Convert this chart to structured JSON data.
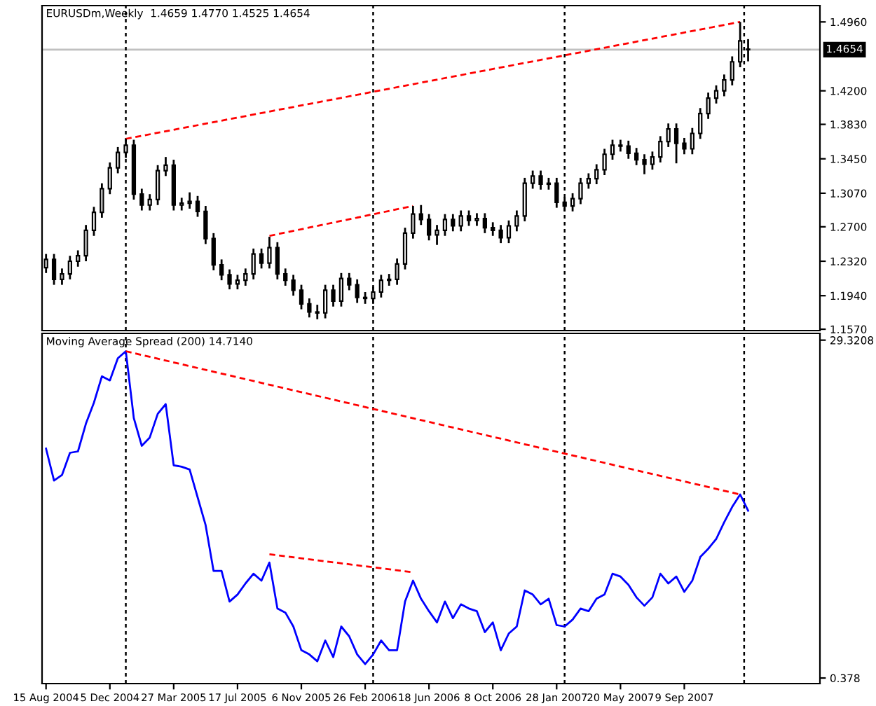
{
  "chart_data": [
    {
      "type": "candlestick",
      "title": "EURUSDm,Weekly  1.4659 1.4770 1.4525 1.4654",
      "color": "#000000",
      "tick_labels": "y",
      "grid": false,
      "legend": false,
      "x": [
        "2004-08-15",
        "2004-08-29",
        "2004-09-12",
        "2004-09-26",
        "2004-10-10",
        "2004-10-24",
        "2004-11-07",
        "2004-11-21",
        "2004-12-05",
        "2004-12-19",
        "2005-01-02",
        "2005-01-16",
        "2005-01-30",
        "2005-02-13",
        "2005-02-27",
        "2005-03-13",
        "2005-03-27",
        "2005-04-10",
        "2005-04-24",
        "2005-05-08",
        "2005-05-22",
        "2005-06-05",
        "2005-06-19",
        "2005-07-03",
        "2005-07-17",
        "2005-07-31",
        "2005-08-14",
        "2005-08-28",
        "2005-09-11",
        "2005-09-25",
        "2005-10-09",
        "2005-10-23",
        "2005-11-06",
        "2005-11-20",
        "2005-12-04",
        "2005-12-18",
        "2006-01-01",
        "2006-01-15",
        "2006-01-29",
        "2006-02-12",
        "2006-02-26",
        "2006-03-12",
        "2006-03-26",
        "2006-04-09",
        "2006-04-23",
        "2006-05-07",
        "2006-05-21",
        "2006-06-04",
        "2006-06-18",
        "2006-07-02",
        "2006-07-16",
        "2006-07-30",
        "2006-08-13",
        "2006-08-27",
        "2006-09-10",
        "2006-09-24",
        "2006-10-08",
        "2006-10-22",
        "2006-11-05",
        "2006-11-19",
        "2006-12-03",
        "2006-12-17",
        "2006-12-31",
        "2007-01-14",
        "2007-01-28",
        "2007-02-11",
        "2007-02-25",
        "2007-03-11",
        "2007-03-25",
        "2007-04-08",
        "2007-04-22",
        "2007-05-06",
        "2007-05-20",
        "2007-06-03",
        "2007-06-17",
        "2007-07-01",
        "2007-07-15",
        "2007-07-29",
        "2007-08-12",
        "2007-08-26",
        "2007-09-09",
        "2007-09-23",
        "2007-10-07",
        "2007-10-21",
        "2007-11-04",
        "2007-11-18",
        "2007-12-02",
        "2007-12-16",
        "2007-12-30"
      ],
      "ohlc": [
        [
          1.225,
          1.24,
          1.219,
          1.234
        ],
        [
          1.234,
          1.24,
          1.206,
          1.212
        ],
        [
          1.212,
          1.224,
          1.206,
          1.218
        ],
        [
          1.218,
          1.238,
          1.212,
          1.232
        ],
        [
          1.232,
          1.244,
          1.226,
          1.238
        ],
        [
          1.238,
          1.272,
          1.232,
          1.266
        ],
        [
          1.266,
          1.292,
          1.26,
          1.286
        ],
        [
          1.286,
          1.318,
          1.28,
          1.312
        ],
        [
          1.312,
          1.341,
          1.306,
          1.335
        ],
        [
          1.335,
          1.358,
          1.329,
          1.352
        ],
        [
          1.352,
          1.367,
          1.346,
          1.36
        ],
        [
          1.36,
          1.366,
          1.3,
          1.306
        ],
        [
          1.306,
          1.312,
          1.288,
          1.294
        ],
        [
          1.294,
          1.306,
          1.288,
          1.3
        ],
        [
          1.3,
          1.338,
          1.294,
          1.332
        ],
        [
          1.332,
          1.347,
          1.326,
          1.338
        ],
        [
          1.338,
          1.344,
          1.288,
          1.294
        ],
        [
          1.294,
          1.302,
          1.288,
          1.296
        ],
        [
          1.296,
          1.308,
          1.29,
          1.298
        ],
        [
          1.298,
          1.304,
          1.281,
          1.287
        ],
        [
          1.287,
          1.293,
          1.251,
          1.257
        ],
        [
          1.257,
          1.263,
          1.222,
          1.228
        ],
        [
          1.228,
          1.234,
          1.211,
          1.217
        ],
        [
          1.217,
          1.223,
          1.201,
          1.207
        ],
        [
          1.207,
          1.217,
          1.201,
          1.211
        ],
        [
          1.211,
          1.224,
          1.205,
          1.218
        ],
        [
          1.218,
          1.246,
          1.212,
          1.24
        ],
        [
          1.24,
          1.246,
          1.224,
          1.23
        ],
        [
          1.23,
          1.259,
          1.224,
          1.247
        ],
        [
          1.247,
          1.253,
          1.212,
          1.218
        ],
        [
          1.218,
          1.224,
          1.205,
          1.211
        ],
        [
          1.211,
          1.217,
          1.194,
          1.2
        ],
        [
          1.2,
          1.206,
          1.179,
          1.185
        ],
        [
          1.185,
          1.191,
          1.17,
          1.176
        ],
        [
          1.176,
          1.184,
          1.168,
          1.175
        ],
        [
          1.175,
          1.206,
          1.169,
          1.2
        ],
        [
          1.2,
          1.206,
          1.182,
          1.188
        ],
        [
          1.188,
          1.219,
          1.182,
          1.213
        ],
        [
          1.213,
          1.219,
          1.2,
          1.206
        ],
        [
          1.206,
          1.212,
          1.186,
          1.192
        ],
        [
          1.192,
          1.198,
          1.185,
          1.191
        ],
        [
          1.191,
          1.204,
          1.185,
          1.198
        ],
        [
          1.198,
          1.217,
          1.192,
          1.211
        ],
        [
          1.211,
          1.218,
          1.205,
          1.212
        ],
        [
          1.212,
          1.235,
          1.206,
          1.229
        ],
        [
          1.229,
          1.269,
          1.223,
          1.263
        ],
        [
          1.263,
          1.293,
          1.257,
          1.284
        ],
        [
          1.284,
          1.294,
          1.272,
          1.278
        ],
        [
          1.278,
          1.284,
          1.255,
          1.261
        ],
        [
          1.261,
          1.272,
          1.25,
          1.266
        ],
        [
          1.266,
          1.284,
          1.26,
          1.278
        ],
        [
          1.278,
          1.284,
          1.265,
          1.271
        ],
        [
          1.271,
          1.288,
          1.265,
          1.282
        ],
        [
          1.282,
          1.288,
          1.271,
          1.277
        ],
        [
          1.277,
          1.285,
          1.271,
          1.279
        ],
        [
          1.279,
          1.285,
          1.263,
          1.269
        ],
        [
          1.269,
          1.275,
          1.26,
          1.266
        ],
        [
          1.266,
          1.272,
          1.252,
          1.258
        ],
        [
          1.258,
          1.277,
          1.252,
          1.271
        ],
        [
          1.271,
          1.288,
          1.265,
          1.282
        ],
        [
          1.282,
          1.324,
          1.276,
          1.318
        ],
        [
          1.318,
          1.332,
          1.312,
          1.326
        ],
        [
          1.326,
          1.332,
          1.311,
          1.317
        ],
        [
          1.317,
          1.324,
          1.311,
          1.318
        ],
        [
          1.318,
          1.324,
          1.291,
          1.297
        ],
        [
          1.297,
          1.303,
          1.287,
          1.293
        ],
        [
          1.293,
          1.307,
          1.287,
          1.301
        ],
        [
          1.301,
          1.324,
          1.295,
          1.318
        ],
        [
          1.318,
          1.329,
          1.312,
          1.323
        ],
        [
          1.323,
          1.339,
          1.317,
          1.333
        ],
        [
          1.333,
          1.356,
          1.327,
          1.35
        ],
        [
          1.35,
          1.366,
          1.344,
          1.36
        ],
        [
          1.36,
          1.366,
          1.353,
          1.359
        ],
        [
          1.359,
          1.365,
          1.345,
          1.351
        ],
        [
          1.351,
          1.357,
          1.338,
          1.344
        ],
        [
          1.344,
          1.35,
          1.328,
          1.339
        ],
        [
          1.339,
          1.353,
          1.333,
          1.347
        ],
        [
          1.347,
          1.37,
          1.341,
          1.364
        ],
        [
          1.364,
          1.384,
          1.358,
          1.378
        ],
        [
          1.378,
          1.384,
          1.34,
          1.362
        ],
        [
          1.362,
          1.368,
          1.35,
          1.356
        ],
        [
          1.356,
          1.379,
          1.35,
          1.373
        ],
        [
          1.373,
          1.401,
          1.367,
          1.395
        ],
        [
          1.395,
          1.418,
          1.389,
          1.412
        ],
        [
          1.412,
          1.426,
          1.406,
          1.42
        ],
        [
          1.42,
          1.438,
          1.414,
          1.432
        ],
        [
          1.432,
          1.458,
          1.426,
          1.452
        ],
        [
          1.452,
          1.496,
          1.446,
          1.475
        ],
        [
          1.4659,
          1.477,
          1.4525,
          1.4654
        ]
      ],
      "series": [
        {
          "type": "line",
          "color": "#ff0000",
          "line_style": "dashed",
          "x": [
            "2005-01-02",
            "2007-12-16"
          ],
          "values": [
            1.367,
            1.496
          ]
        },
        {
          "type": "line",
          "color": "#ff0000",
          "line_style": "dashed",
          "x": [
            "2005-09-11",
            "2006-05-21"
          ],
          "values": [
            1.26,
            1.293
          ]
        }
      ],
      "ref_lines": [
        {
          "axis": "y",
          "value": 1.4654,
          "label": "1.4654",
          "color": "#c0c0c0",
          "line_style": "solid"
        },
        {
          "axis": "x",
          "value": "2005-01-02",
          "color": "#000000",
          "line_style": "dotted"
        },
        {
          "axis": "x",
          "value": "2006-03-12",
          "color": "#000000",
          "line_style": "dotted"
        },
        {
          "axis": "x",
          "value": "2007-02-11",
          "color": "#000000",
          "line_style": "dotted"
        },
        {
          "axis": "x",
          "value": "2007-12-23",
          "color": "#000000",
          "line_style": "dotted"
        }
      ],
      "xlim": [
        "2004-08-08",
        "2008-05-04"
      ],
      "ylim": [
        1.1555,
        1.514
      ],
      "yticks": [
        {
          "value": 1.496,
          "label": "1.4960"
        },
        {
          "value": 1.42,
          "label": "1.4200"
        },
        {
          "value": 1.383,
          "label": "1.3830"
        },
        {
          "value": 1.345,
          "label": "1.3450"
        },
        {
          "value": 1.307,
          "label": "1.3070"
        },
        {
          "value": 1.27,
          "label": "1.2700"
        },
        {
          "value": 1.232,
          "label": "1.2320"
        },
        {
          "value": 1.194,
          "label": "1.1940"
        },
        {
          "value": 1.157,
          "label": "1.1570"
        }
      ]
    },
    {
      "type": "line",
      "title": "Moving Average Spread (200) 14.7140",
      "grid": false,
      "legend": false,
      "series": [
        {
          "color": "#0000ff",
          "line_style": "solid",
          "x": [
            "2004-08-15",
            "2004-08-29",
            "2004-09-12",
            "2004-09-26",
            "2004-10-10",
            "2004-10-24",
            "2004-11-07",
            "2004-11-21",
            "2004-12-05",
            "2004-12-19",
            "2005-01-02",
            "2005-01-16",
            "2005-01-30",
            "2005-02-13",
            "2005-02-27",
            "2005-03-13",
            "2005-03-27",
            "2005-04-10",
            "2005-04-24",
            "2005-05-08",
            "2005-05-22",
            "2005-06-05",
            "2005-06-19",
            "2005-07-03",
            "2005-07-17",
            "2005-07-31",
            "2005-08-14",
            "2005-08-28",
            "2005-09-11",
            "2005-09-25",
            "2005-10-09",
            "2005-10-23",
            "2005-11-06",
            "2005-11-20",
            "2005-12-04",
            "2005-12-18",
            "2006-01-01",
            "2006-01-15",
            "2006-01-29",
            "2006-02-12",
            "2006-02-26",
            "2006-03-12",
            "2006-03-26",
            "2006-04-09",
            "2006-04-23",
            "2006-05-07",
            "2006-05-21",
            "2006-06-04",
            "2006-06-18",
            "2006-07-02",
            "2006-07-16",
            "2006-07-30",
            "2006-08-13",
            "2006-08-27",
            "2006-09-10",
            "2006-09-24",
            "2006-10-08",
            "2006-10-22",
            "2006-11-05",
            "2006-11-19",
            "2006-12-03",
            "2006-12-17",
            "2006-12-31",
            "2007-01-14",
            "2007-01-28",
            "2007-02-11",
            "2007-02-25",
            "2007-03-11",
            "2007-03-25",
            "2007-04-08",
            "2007-04-22",
            "2007-05-06",
            "2007-05-20",
            "2007-06-03",
            "2007-06-17",
            "2007-07-01",
            "2007-07-15",
            "2007-07-29",
            "2007-08-12",
            "2007-08-26",
            "2007-09-09",
            "2007-09-23",
            "2007-10-07",
            "2007-10-21",
            "2007-11-04",
            "2007-11-18",
            "2007-12-02",
            "2007-12-16",
            "2007-12-30"
          ],
          "values": [
            20.03,
            17.29,
            17.77,
            19.67,
            19.79,
            22.17,
            23.96,
            26.22,
            25.87,
            27.77,
            28.37,
            22.65,
            20.27,
            20.98,
            23.01,
            23.84,
            18.6,
            18.48,
            18.24,
            15.86,
            13.48,
            9.55,
            9.55,
            6.93,
            7.53,
            8.48,
            9.31,
            8.72,
            10.27,
            6.33,
            5.98,
            4.79,
            2.76,
            2.4,
            1.81,
            3.59,
            2.17,
            4.79,
            3.95,
            2.4,
            1.57,
            2.4,
            3.59,
            2.76,
            2.76,
            6.93,
            8.72,
            7.17,
            6.1,
            5.14,
            6.93,
            5.5,
            6.69,
            6.33,
            6.1,
            4.31,
            5.14,
            2.76,
            4.19,
            4.79,
            7.88,
            7.53,
            6.69,
            7.17,
            4.91,
            4.79,
            5.38,
            6.33,
            6.1,
            7.17,
            7.53,
            9.31,
            9.07,
            8.36,
            7.29,
            6.57,
            7.29,
            9.31,
            8.48,
            9.07,
            7.76,
            8.72,
            10.74,
            11.45,
            12.29,
            13.72,
            15.03,
            16.1,
            14.714
          ]
        },
        {
          "color": "#ff0000",
          "line_style": "dashed",
          "x": [
            "2005-01-02",
            "2007-12-16"
          ],
          "values": [
            28.37,
            16.1
          ]
        },
        {
          "color": "#ff0000",
          "line_style": "dashed",
          "x": [
            "2005-09-11",
            "2006-05-21"
          ],
          "values": [
            10.98,
            9.43
          ]
        }
      ],
      "ref_lines": [
        {
          "axis": "x",
          "value": "2005-01-02",
          "color": "#000000",
          "line_style": "dotted"
        },
        {
          "axis": "x",
          "value": "2006-03-12",
          "color": "#000000",
          "line_style": "dotted"
        },
        {
          "axis": "x",
          "value": "2007-02-11",
          "color": "#000000",
          "line_style": "dotted"
        },
        {
          "axis": "x",
          "value": "2007-12-23",
          "color": "#000000",
          "line_style": "dotted"
        }
      ],
      "xlim": [
        "2004-08-08",
        "2008-05-04"
      ],
      "xticks": [
        {
          "value": "2004-08-15",
          "label": "15 Aug 2004"
        },
        {
          "value": "2004-12-05",
          "label": "5 Dec 2004"
        },
        {
          "value": "2005-03-27",
          "label": "27 Mar 2005"
        },
        {
          "value": "2005-07-17",
          "label": "17 Jul 2005"
        },
        {
          "value": "2005-11-06",
          "label": "6 Nov 2005"
        },
        {
          "value": "2006-02-26",
          "label": "26 Feb 2006"
        },
        {
          "value": "2006-06-18",
          "label": "18 Jun 2006"
        },
        {
          "value": "2006-10-08",
          "label": "8 Oct 2006"
        },
        {
          "value": "2007-01-28",
          "label": "28 Jan 2007"
        },
        {
          "value": "2007-05-20",
          "label": "20 May 2007"
        },
        {
          "value": "2007-09-09",
          "label": "9 Sep 2007"
        }
      ],
      "ylim": [
        -0.1,
        29.9
      ],
      "yticks": [
        29.3208,
        0.378
      ]
    }
  ]
}
